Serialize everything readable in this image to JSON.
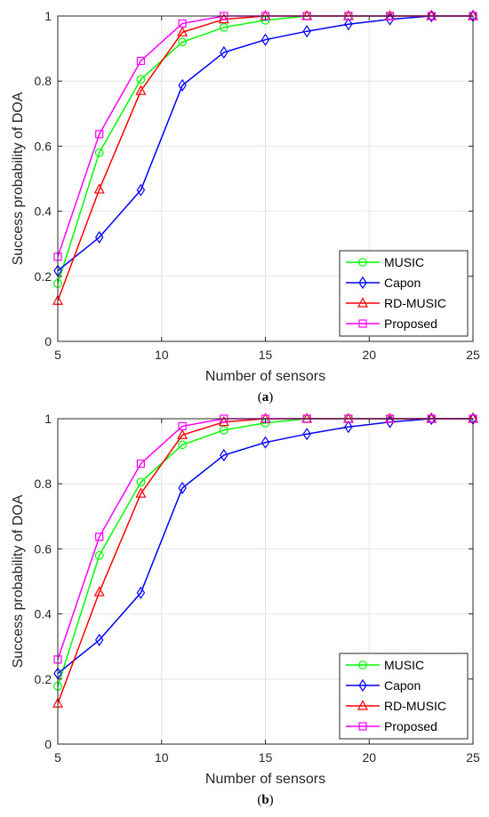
{
  "chart_data": [
    {
      "type": "line",
      "caption_letter": "a",
      "xlabel": "Number of sensors",
      "ylabel": "Success probability of DOA",
      "xlim": [
        5,
        25
      ],
      "ylim": [
        0,
        1
      ],
      "xticks": [
        5,
        10,
        15,
        20,
        25
      ],
      "yticks": [
        0,
        0.2,
        0.4,
        0.6,
        0.8,
        1
      ],
      "xtick_labels": [
        "5",
        "10",
        "15",
        "20",
        "25"
      ],
      "ytick_labels": [
        "0",
        "0.2",
        "0.4",
        "0.6",
        "0.8",
        "1"
      ],
      "grid": true,
      "legend_position": "bottom-right",
      "x": [
        5,
        7,
        9,
        11,
        13,
        15,
        17,
        19,
        21,
        23,
        25
      ],
      "series": [
        {
          "name": "MUSIC",
          "color": "#00FF00",
          "marker": "circle",
          "values": [
            0.178,
            0.58,
            0.805,
            0.92,
            0.965,
            0.987,
            1.0,
            1.0,
            1.0,
            1.0,
            1.0
          ]
        },
        {
          "name": "Capon",
          "color": "#0000FF",
          "marker": "diamond",
          "values": [
            0.217,
            0.32,
            0.465,
            0.787,
            0.888,
            0.927,
            0.953,
            0.975,
            0.99,
            1.0,
            1.0
          ]
        },
        {
          "name": "RD-MUSIC",
          "color": "#FF0000",
          "marker": "triangle",
          "values": [
            0.125,
            0.467,
            0.77,
            0.95,
            0.99,
            1.0,
            1.0,
            1.0,
            1.0,
            1.0,
            1.0
          ]
        },
        {
          "name": "Proposed",
          "color": "#FF00FF",
          "marker": "square",
          "values": [
            0.26,
            0.637,
            0.862,
            0.977,
            1.0,
            1.0,
            1.0,
            1.0,
            1.0,
            1.0,
            1.0
          ]
        }
      ]
    },
    {
      "type": "line",
      "caption_letter": "b",
      "xlabel": "Number of sensors",
      "ylabel": "Success probability of DOA",
      "xlim": [
        5,
        25
      ],
      "ylim": [
        0,
        1
      ],
      "xticks": [
        5,
        10,
        15,
        20,
        25
      ],
      "yticks": [
        0,
        0.2,
        0.4,
        0.6,
        0.8,
        1
      ],
      "xtick_labels": [
        "5",
        "10",
        "15",
        "20",
        "25"
      ],
      "ytick_labels": [
        "0",
        "0.2",
        "0.4",
        "0.6",
        "0.8",
        "1"
      ],
      "grid": true,
      "legend_position": "bottom-right",
      "x": [
        5,
        7,
        9,
        11,
        13,
        15,
        17,
        19,
        21,
        23,
        25
      ],
      "series": [
        {
          "name": "MUSIC",
          "color": "#00FF00",
          "marker": "circle",
          "values": [
            0.178,
            0.58,
            0.805,
            0.92,
            0.965,
            0.987,
            1.0,
            1.0,
            1.0,
            1.0,
            1.0
          ]
        },
        {
          "name": "Capon",
          "color": "#0000FF",
          "marker": "diamond",
          "values": [
            0.217,
            0.32,
            0.465,
            0.787,
            0.888,
            0.927,
            0.953,
            0.975,
            0.99,
            1.0,
            1.0
          ]
        },
        {
          "name": "RD-MUSIC",
          "color": "#FF0000",
          "marker": "triangle",
          "values": [
            0.125,
            0.467,
            0.77,
            0.95,
            0.99,
            1.0,
            1.0,
            1.0,
            1.0,
            1.0,
            1.0
          ]
        },
        {
          "name": "Proposed",
          "color": "#FF00FF",
          "marker": "square",
          "values": [
            0.26,
            0.637,
            0.862,
            0.977,
            1.0,
            1.0,
            1.0,
            1.0,
            1.0,
            1.0,
            1.0
          ]
        }
      ]
    }
  ]
}
